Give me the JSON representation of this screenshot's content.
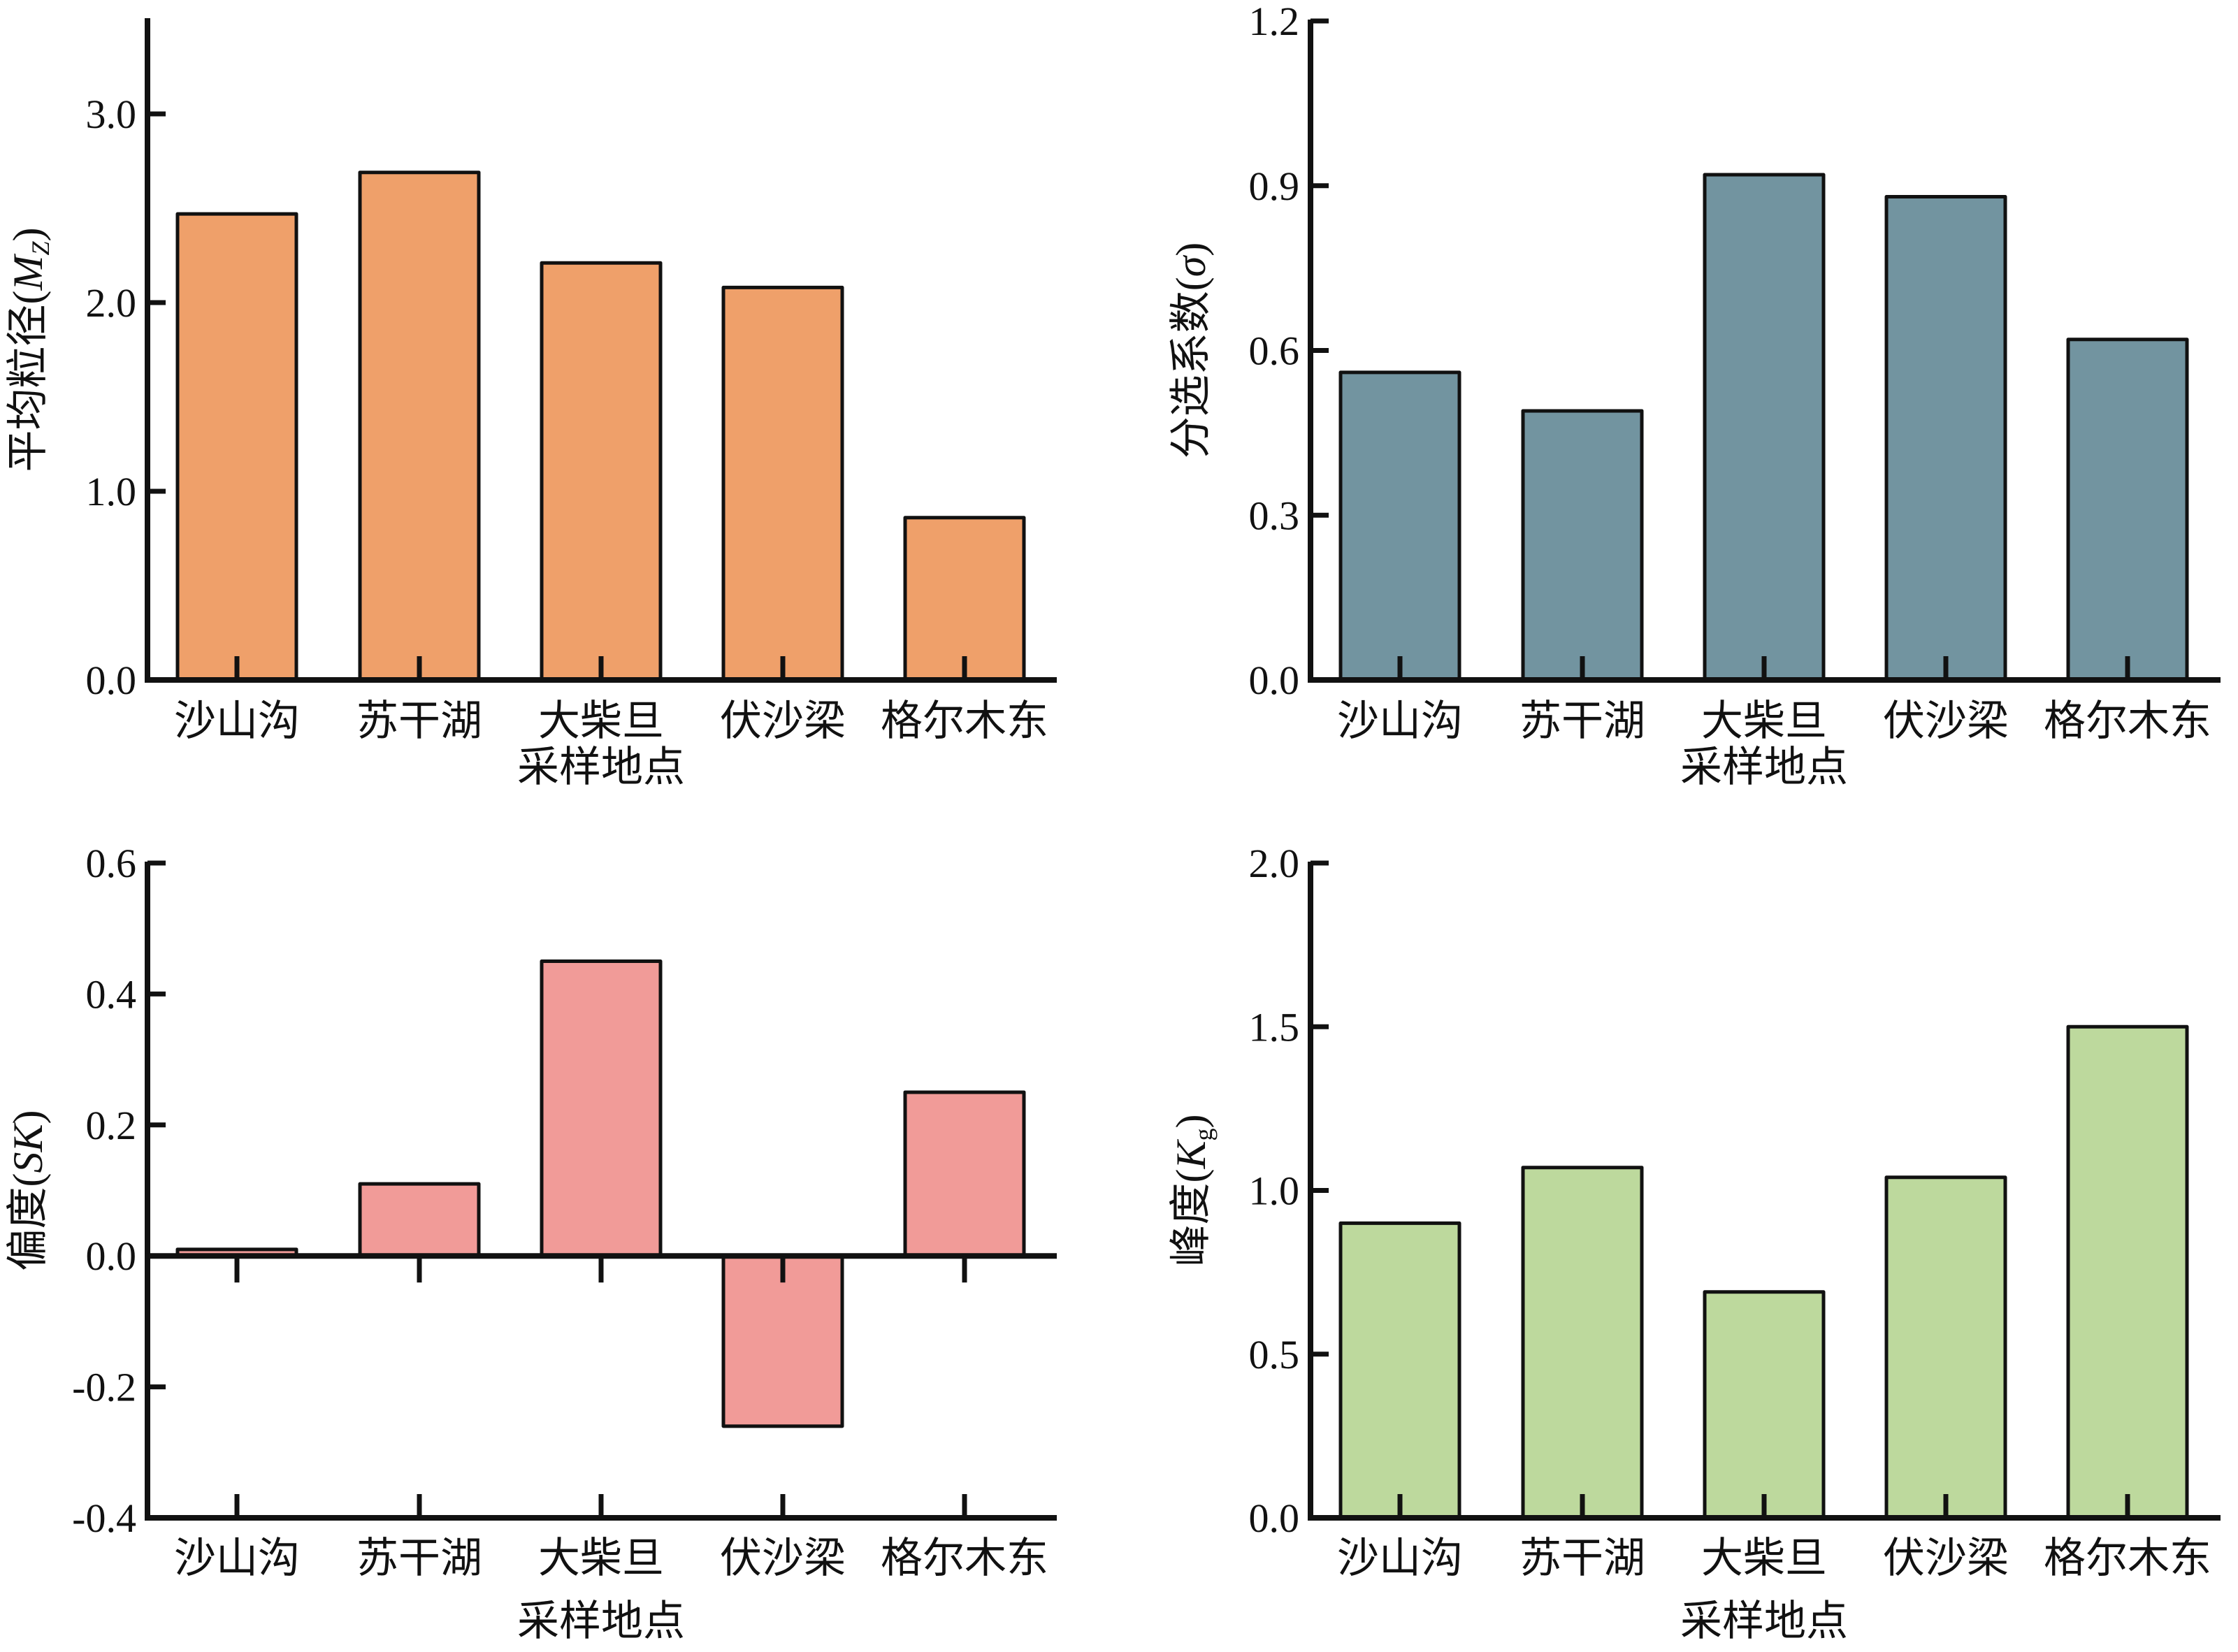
{
  "chart_data": [
    {
      "type": "bar",
      "panel": "top-left",
      "categories": [
        "沙山沟",
        "苏干湖",
        "大柴旦",
        "伏沙梁",
        "格尔木东"
      ],
      "values": [
        2.47,
        2.69,
        2.21,
        2.08,
        0.86
      ],
      "ylabel": {
        "main": "平均粒径(",
        "var": "M",
        "sub": "Z",
        "close": ")"
      },
      "xlabel": "采样地点",
      "ylim": [
        0,
        3.5
      ],
      "yticks": [
        0.0,
        1.0,
        2.0,
        3.0
      ],
      "ytick_labels": [
        "0.0",
        "1.0",
        "2.0",
        "3.0"
      ],
      "color": "#EFA06A",
      "grid": false
    },
    {
      "type": "bar",
      "panel": "top-right",
      "categories": [
        "沙山沟",
        "苏干湖",
        "大柴旦",
        "伏沙梁",
        "格尔木东"
      ],
      "values": [
        0.56,
        0.49,
        0.92,
        0.88,
        0.62
      ],
      "ylabel": {
        "main": "分选系数(",
        "var": "σ",
        "sub": "",
        "close": ")"
      },
      "xlabel": "采样地点",
      "ylim": [
        0,
        1.2
      ],
      "yticks": [
        0.0,
        0.3,
        0.6,
        0.9,
        1.2
      ],
      "ytick_labels": [
        "0.0",
        "0.3",
        "0.6",
        "0.9",
        "1.2"
      ],
      "color": "#7294A0",
      "grid": false
    },
    {
      "type": "bar",
      "panel": "bottom-left",
      "categories": [
        "沙山沟",
        "苏干湖",
        "大柴旦",
        "伏沙梁",
        "格尔木东"
      ],
      "values": [
        0.01,
        0.11,
        0.45,
        -0.26,
        0.25
      ],
      "ylabel": {
        "main": "偏度(",
        "var": "SK",
        "sub": "",
        "close": ")"
      },
      "xlabel": "采样地点",
      "ylim": [
        -0.4,
        0.6
      ],
      "yticks": [
        -0.4,
        -0.2,
        0.0,
        0.2,
        0.4,
        0.6
      ],
      "ytick_labels": [
        "-0.4",
        "-0.2",
        "0.0",
        "0.2",
        "0.4",
        "0.6"
      ],
      "color": "#F19B98",
      "grid": false
    },
    {
      "type": "bar",
      "panel": "bottom-right",
      "categories": [
        "沙山沟",
        "苏干湖",
        "大柴旦",
        "伏沙梁",
        "格尔木东"
      ],
      "values": [
        0.9,
        1.07,
        0.69,
        1.04,
        1.5
      ],
      "ylabel": {
        "main": "峰度(",
        "var": "K",
        "sub": "g",
        "close": ")"
      },
      "xlabel": "采样地点",
      "ylim": [
        0,
        2.0
      ],
      "yticks": [
        0.0,
        0.5,
        1.0,
        1.5,
        2.0
      ],
      "ytick_labels": [
        "0.0",
        "0.5",
        "1.0",
        "1.5",
        "2.0"
      ],
      "color": "#BDD99D",
      "grid": false
    }
  ]
}
